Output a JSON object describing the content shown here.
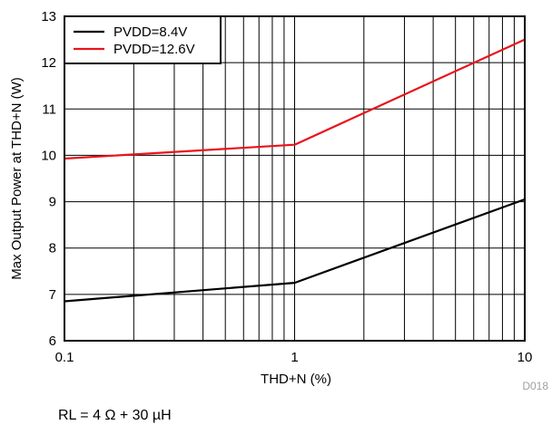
{
  "chart_data": {
    "type": "line",
    "xscale": "log",
    "xlim": [
      0.1,
      10
    ],
    "ylim": [
      6,
      13
    ],
    "xlabel": "THD+N (%)",
    "ylabel": "Max Output Power at THD+N (W)",
    "xticks": [
      0.1,
      1,
      10
    ],
    "xtick_labels": [
      "0.1",
      "1",
      "10"
    ],
    "yticks": [
      6,
      7,
      8,
      9,
      10,
      11,
      12,
      13
    ],
    "grid": true,
    "legend_position": "top-left",
    "series": [
      {
        "name": "PVDD=8.4V",
        "color": "#000000",
        "x": [
          0.1,
          1,
          10
        ],
        "y": [
          6.85,
          7.25,
          9.05
        ]
      },
      {
        "name": "PVDD=12.6V",
        "color": "#e8141b",
        "x": [
          0.1,
          1,
          10
        ],
        "y": [
          9.93,
          10.23,
          12.5
        ]
      }
    ]
  },
  "figure_id": "D018",
  "condition_note": "RL = 4 Ω + 30 µH"
}
